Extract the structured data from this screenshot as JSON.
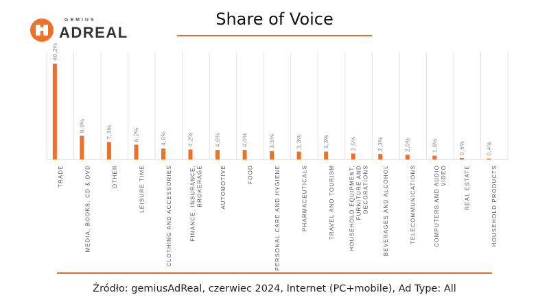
{
  "brand": {
    "small": "GEMIUS",
    "big": "ADREAL",
    "accent": "#ee7127"
  },
  "source": "Źródło: gemiusAdReal, czerwiec 2024, Internet (PC+mobile), Ad Type: All",
  "chart_data": {
    "type": "bar",
    "title": "Share of Voice",
    "xlabel": "",
    "ylabel": "",
    "ylim": [
      0,
      40.2
    ],
    "grid": true,
    "legend": "none",
    "bar_color": "#ee7127",
    "categories": [
      [
        "TRADE"
      ],
      [
        "MEDIA, BOOKS, CD & DVD"
      ],
      [
        "OTHER"
      ],
      [
        "LEISURE TIME"
      ],
      [
        "CLOTHING AND ACCESSORIES"
      ],
      [
        "FINANCE, INSURANCE,",
        "BROKERAGE"
      ],
      [
        "AUTOMOTIVE"
      ],
      [
        "FOOD"
      ],
      [
        "PERSONAL CARE AND HYGIENE"
      ],
      [
        "PHARMACEUTICALS"
      ],
      [
        "TRAVEL AND TOURISM"
      ],
      [
        "HOUSEHOLD EQUIPMENT,",
        "FURNITURE AND",
        "DECORATIONS"
      ],
      [
        "BEVERAGES AND ALCOHOL"
      ],
      [
        "TELECOMMUNICATIONS"
      ],
      [
        "COMPUTERS AND AUDIO",
        "VIDEO"
      ],
      [
        "REAL ESTATE"
      ],
      [
        "HOUSEHOLD PRODUCTS"
      ]
    ],
    "values": [
      40.2,
      9.9,
      7.3,
      6.2,
      4.6,
      4.2,
      4.0,
      4.0,
      3.5,
      3.3,
      3.3,
      2.5,
      2.3,
      2.0,
      1.6,
      0.6,
      0.4
    ],
    "labels": [
      "40,2%",
      "9,9%",
      "7,3%",
      "6,2%",
      "4,6%",
      "4,2%",
      "4,0%",
      "4,0%",
      "3,5%",
      "3,3%",
      "3,3%",
      "2,5%",
      "2,3%",
      "2,0%",
      "1,6%",
      "0,6%",
      "0,4%"
    ]
  }
}
